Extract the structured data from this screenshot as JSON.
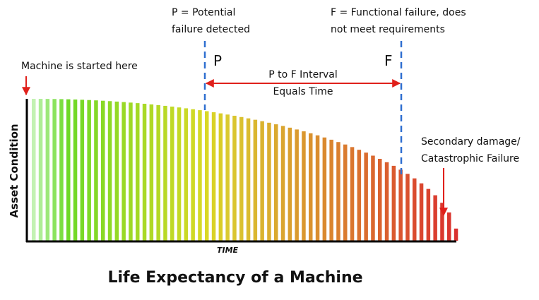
{
  "p_note": [
    "P = Potential",
    "failure detected"
  ],
  "f_note": [
    "F = Functional failure, does",
    "not meet requirements"
  ],
  "start_note": "Machine is started here",
  "p_marker": "P",
  "f_marker": "F",
  "interval": [
    "P to F Interval",
    "Equals Time"
  ],
  "secondary_note": [
    "Secondary damage/",
    "Catastrophic Failure"
  ],
  "y_axis_label": "Asset Condition",
  "x_axis_label": "TIME",
  "title": "Life Expectancy of a Machine"
}
